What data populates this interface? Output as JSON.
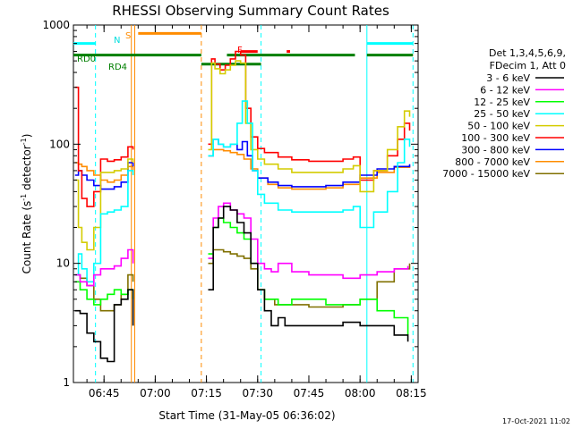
{
  "colors": {
    "black": "#000000",
    "magenta": "#ff00ff",
    "green": "#00ff00",
    "cyan": "#00ffff",
    "yellow": "#d4cc00",
    "red": "#ff0000",
    "blue": "#0000ff",
    "orange": "#ff8c00",
    "olive": "#807000",
    "darkgreen": "#007f00"
  },
  "chart_data": {
    "type": "line",
    "title": "RHESSI Observing Summary Count Rates",
    "xlabel": "Start Time (31-May-05 06:36:02)",
    "ylabel_main": "Count Rate (s",
    "ylabel_sup": "-1",
    "ylabel_mid": " detector",
    "ylabel_sup2": "-1",
    "ylabel_end": ")",
    "timestamp": "17-Oct-2021 11:02",
    "y_scale": "log",
    "ylim": [
      1,
      1000
    ],
    "xlim": [
      "06:36:02",
      "08:17:00"
    ],
    "x_ticks": [
      "06:45",
      "07:00",
      "07:15",
      "07:30",
      "07:45",
      "08:00",
      "08:15"
    ],
    "y_ticks": [
      {
        "value": 1,
        "label": "1"
      },
      {
        "value": 10,
        "label": "10"
      },
      {
        "value": 100,
        "label": "100"
      },
      {
        "value": 1000,
        "label": "1000"
      }
    ],
    "legend": {
      "position": "right",
      "header1": "Det 1,3,4,5,6,9,",
      "header2": "FDecim 1, Att 0",
      "entries": [
        {
          "label": "3 - 6 keV",
          "color": "#000000"
        },
        {
          "label": "6 - 12 keV",
          "color": "#ff00ff"
        },
        {
          "label": "12 - 25 keV",
          "color": "#00ff00"
        },
        {
          "label": "25 - 50 keV",
          "color": "#00ffff"
        },
        {
          "label": "50 - 100 keV",
          "color": "#d4cc00"
        },
        {
          "label": "100 - 300 keV",
          "color": "#ff0000"
        },
        {
          "label": "300 - 800 keV",
          "color": "#0000ff"
        },
        {
          "label": "800 - 7000 keV",
          "color": "#ff8c00"
        },
        {
          "label": "7000 - 15000 keV",
          "color": "#807000"
        }
      ]
    },
    "flag_labels": {
      "N": "N",
      "S": "S",
      "F": "F",
      "RD0": "RD0",
      "RD4": "RD4"
    },
    "flag_bars": [
      {
        "flag": "N",
        "color": "#00ffff",
        "level": 700,
        "ranges": [
          [
            "06:36:02",
            "06:42:30"
          ],
          [
            "08:02:00",
            "08:15:30"
          ]
        ]
      },
      {
        "flag": "S",
        "color": "#ff8c00",
        "level": 850,
        "ranges": [
          [
            "06:55:00",
            "07:13:30"
          ]
        ]
      },
      {
        "flag": "F",
        "color": "#ff0000",
        "level": 600,
        "ranges": [
          [
            "07:25:00",
            "07:30:00"
          ],
          [
            "07:38:30",
            "07:39:30"
          ]
        ]
      },
      {
        "flag": "RD0",
        "color": "#007f00",
        "level": 560,
        "ranges": [
          [
            "06:36:02",
            "07:13:30"
          ],
          [
            "07:21:00",
            "07:58:30"
          ],
          [
            "08:02:00",
            "08:15:30"
          ]
        ]
      },
      {
        "flag": "RD4",
        "color": "#007f00",
        "level": 470,
        "ranges": [
          [
            "07:13:30",
            "07:31:00"
          ]
        ]
      }
    ],
    "vertical_lines": [
      {
        "time": "06:42:30",
        "color": "#00ffff",
        "style": "dashed"
      },
      {
        "time": "06:53:00",
        "color": "#ff8c00",
        "style": "solid"
      },
      {
        "time": "06:54:00",
        "color": "#ff8c00",
        "style": "solid"
      },
      {
        "time": "07:13:30",
        "color": "#ff8c00",
        "style": "dashed"
      },
      {
        "time": "07:31:00",
        "color": "#00ffff",
        "style": "dashed"
      },
      {
        "time": "08:02:00",
        "color": "#00ffff",
        "style": "solid"
      },
      {
        "time": "08:15:30",
        "color": "#00ffff",
        "style": "dashed"
      }
    ],
    "gaps": [
      {
        "from": "06:54:00",
        "to": "07:15:30"
      }
    ],
    "series": [
      {
        "name": "3 - 6 keV",
        "color": "#000000",
        "segments": [
          {
            "x": [
              "06:36:30",
              "06:38:00",
              "06:40:00",
              "06:42:00",
              "06:44:00",
              "06:46:00",
              "06:48:00",
              "06:50:00",
              "06:52:00",
              "06:53:30"
            ],
            "y": [
              4,
              3.8,
              2.6,
              2.2,
              1.6,
              1.5,
              4.5,
              5,
              6,
              3
            ]
          },
          {
            "x": [
              "07:15:30",
              "07:17:00",
              "07:18:30",
              "07:20:00",
              "07:22:00",
              "07:24:00",
              "07:26:00",
              "07:28:00",
              "07:30:00",
              "07:32:00",
              "07:34:00",
              "07:36:00",
              "07:38:00",
              "07:40:00",
              "07:45:00",
              "07:50:00",
              "07:55:00",
              "08:00:00",
              "08:05:00",
              "08:10:00",
              "08:14:00"
            ],
            "y": [
              6,
              20,
              24,
              30,
              28,
              22,
              18,
              10,
              6,
              4,
              3,
              3.5,
              3,
              3,
              3,
              3,
              3.2,
              3,
              3,
              2.5,
              2.2
            ]
          }
        ]
      },
      {
        "name": "6 - 12 keV",
        "color": "#ff00ff",
        "segments": [
          {
            "x": [
              "06:36:30",
              "06:38:00",
              "06:40:00",
              "06:42:00",
              "06:44:00",
              "06:46:00",
              "06:48:00",
              "06:50:00",
              "06:52:00",
              "06:53:30"
            ],
            "y": [
              8,
              7,
              6.5,
              8,
              9,
              9,
              9.5,
              11,
              13,
              10
            ]
          },
          {
            "x": [
              "07:15:30",
              "07:17:00",
              "07:18:30",
              "07:20:00",
              "07:22:00",
              "07:24:00",
              "07:26:00",
              "07:28:00",
              "07:30:00",
              "07:32:00",
              "07:34:00",
              "07:36:00",
              "07:40:00",
              "07:45:00",
              "07:50:00",
              "07:55:00",
              "08:00:00",
              "08:05:00",
              "08:10:00",
              "08:14:00"
            ],
            "y": [
              11,
              24,
              30,
              32,
              28,
              26,
              24,
              16,
              10,
              9,
              8.5,
              10,
              8.5,
              8,
              8,
              7.5,
              8,
              8.5,
              9,
              9.5
            ]
          }
        ]
      },
      {
        "name": "12 - 25 keV",
        "color": "#00ff00",
        "segments": [
          {
            "x": [
              "06:36:30",
              "06:38:00",
              "06:40:00",
              "06:42:00",
              "06:44:00",
              "06:46:00",
              "06:48:00",
              "06:50:00",
              "06:52:00",
              "06:53:30"
            ],
            "y": [
              7,
              6,
              5,
              4.5,
              5,
              5.5,
              6,
              5.5,
              6,
              5
            ]
          },
          {
            "x": [
              "07:15:30",
              "07:17:00",
              "07:18:30",
              "07:20:00",
              "07:22:00",
              "07:24:00",
              "07:26:00",
              "07:28:00",
              "07:30:00",
              "07:32:00",
              "07:36:00",
              "07:40:00",
              "07:45:00",
              "07:50:00",
              "07:55:00",
              "08:00:00",
              "08:05:00",
              "08:10:00",
              "08:14:00"
            ],
            "y": [
              12,
              20,
              24,
              22,
              20,
              18,
              16,
              10,
              6,
              5,
              4.5,
              5,
              5,
              4.5,
              4.5,
              5,
              4,
              3.5,
              2.5
            ]
          }
        ]
      },
      {
        "name": "25 - 50 keV",
        "color": "#00ffff",
        "segments": [
          {
            "x": [
              "06:36:30",
              "06:37:30",
              "06:38:30",
              "06:40:00",
              "06:42:00",
              "06:44:00",
              "06:46:00",
              "06:48:00",
              "06:50:00",
              "06:52:00",
              "06:53:30"
            ],
            "y": [
              8,
              12,
              9,
              7,
              10,
              26,
              27,
              28,
              30,
              60,
              55
            ]
          },
          {
            "x": [
              "07:15:30",
              "07:17:00",
              "07:18:30",
              "07:20:00",
              "07:22:00",
              "07:24:00",
              "07:25:30",
              "07:27:00",
              "07:28:30",
              "07:30:00",
              "07:32:00",
              "07:36:00",
              "07:40:00",
              "07:45:00",
              "07:50:00",
              "07:55:00",
              "07:58:00",
              "08:00:00",
              "08:04:00",
              "08:08:00",
              "08:11:00",
              "08:13:00",
              "08:14:30"
            ],
            "y": [
              80,
              110,
              100,
              95,
              100,
              150,
              230,
              150,
              60,
              38,
              32,
              28,
              27,
              27,
              27,
              28,
              30,
              20,
              27,
              40,
              70,
              110,
              95
            ]
          }
        ]
      },
      {
        "name": "50 - 100 keV",
        "color": "#d4cc00",
        "segments": [
          {
            "x": [
              "06:36:30",
              "06:37:30",
              "06:38:30",
              "06:40:00",
              "06:42:00",
              "06:44:00",
              "06:46:00",
              "06:48:00",
              "06:50:00",
              "06:52:00",
              "06:53:30"
            ],
            "y": [
              50,
              20,
              15,
              13,
              20,
              58,
              58,
              60,
              62,
              75,
              70
            ]
          },
          {
            "x": [
              "07:15:30",
              "07:16:30",
              "07:17:30",
              "07:19:00",
              "07:20:30",
              "07:22:00",
              "07:23:30",
              "07:25:00",
              "07:26:30",
              "07:28:00",
              "07:30:00",
              "07:32:00",
              "07:36:00",
              "07:40:00",
              "07:45:00",
              "07:50:00",
              "07:55:00",
              "07:58:00",
              "08:00:00",
              "08:04:00",
              "08:08:00",
              "08:11:00",
              "08:13:00",
              "08:14:30"
            ],
            "y": [
              90,
              480,
              430,
              390,
              420,
              460,
              500,
              480,
              150,
              90,
              75,
              68,
              62,
              58,
              58,
              58,
              62,
              66,
              40,
              60,
              90,
              140,
              190,
              170
            ]
          }
        ]
      },
      {
        "name": "100 - 300 keV",
        "color": "#ff0000",
        "segments": [
          {
            "x": [
              "06:36:30",
              "06:37:30",
              "06:38:30",
              "06:40:00",
              "06:42:00",
              "06:44:00",
              "06:46:00",
              "06:48:00",
              "06:50:00",
              "06:52:00",
              "06:53:30"
            ],
            "y": [
              300,
              60,
              35,
              30,
              40,
              75,
              72,
              74,
              78,
              95,
              90
            ]
          },
          {
            "x": [
              "07:15:30",
              "07:16:30",
              "07:17:30",
              "07:19:00",
              "07:20:30",
              "07:22:00",
              "07:23:30",
              "07:25:00",
              "07:26:30",
              "07:28:00",
              "07:30:00",
              "07:32:00",
              "07:36:00",
              "07:40:00",
              "07:45:00",
              "07:50:00",
              "07:55:00",
              "07:58:00",
              "08:00:00",
              "08:04:00",
              "08:08:00",
              "08:11:00",
              "08:13:00",
              "08:14:30"
            ],
            "y": [
              100,
              520,
              470,
              420,
              460,
              520,
              600,
              560,
              200,
              115,
              92,
              85,
              78,
              74,
              72,
              72,
              75,
              78,
              50,
              60,
              80,
              110,
              150,
              130
            ]
          }
        ]
      },
      {
        "name": "300 - 800 keV",
        "color": "#0000ff",
        "segments": [
          {
            "x": [
              "06:36:30",
              "06:37:30",
              "06:38:30",
              "06:40:00",
              "06:42:00",
              "06:44:00",
              "06:46:00",
              "06:48:00",
              "06:50:00",
              "06:52:00",
              "06:53:30"
            ],
            "y": [
              55,
              60,
              55,
              50,
              45,
              42,
              42,
              44,
              48,
              70,
              65
            ]
          },
          {
            "x": [
              "07:15:30",
              "07:17:00",
              "07:18:30",
              "07:20:00",
              "07:22:00",
              "07:24:00",
              "07:25:30",
              "07:27:00",
              "07:28:30",
              "07:30:00",
              "07:33:00",
              "07:36:00",
              "07:40:00",
              "07:45:00",
              "07:50:00",
              "07:55:00",
              "08:00:00",
              "08:05:00",
              "08:10:00",
              "08:14:30"
            ],
            "y": [
              80,
              110,
              100,
              95,
              100,
              90,
              105,
              80,
              60,
              52,
              48,
              45,
              44,
              44,
              45,
              48,
              55,
              62,
              65,
              68
            ]
          }
        ]
      },
      {
        "name": "800 - 7000 keV",
        "color": "#ff8c00",
        "segments": [
          {
            "x": [
              "06:36:30",
              "06:37:30",
              "06:38:30",
              "06:40:00",
              "06:42:00",
              "06:44:00",
              "06:46:00",
              "06:48:00",
              "06:50:00",
              "06:52:00",
              "06:53:30"
            ],
            "y": [
              70,
              68,
              65,
              60,
              55,
              50,
              48,
              50,
              55,
              65,
              60
            ]
          },
          {
            "x": [
              "07:15:30",
              "07:17:00",
              "07:18:30",
              "07:20:00",
              "07:22:00",
              "07:24:00",
              "07:26:00",
              "07:28:00",
              "07:30:00",
              "07:33:00",
              "07:36:00",
              "07:40:00",
              "07:45:00",
              "07:50:00",
              "07:55:00",
              "08:00:00",
              "08:05:00",
              "08:10:00",
              "08:14:30"
            ],
            "y": [
              80,
              90,
              90,
              88,
              85,
              82,
              75,
              62,
              52,
              46,
              43,
              42,
              42,
              43,
              46,
              52,
              58,
              64,
              66
            ]
          }
        ]
      },
      {
        "name": "7000 - 15000 keV",
        "color": "#807000",
        "segments": [
          {
            "x": [
              "06:36:30",
              "06:38:00",
              "06:40:00",
              "06:42:00",
              "06:44:00",
              "06:46:00",
              "06:48:00",
              "06:50:00",
              "06:52:00",
              "06:53:30"
            ],
            "y": [
              8,
              7.5,
              6.5,
              5,
              4,
              4,
              4.5,
              5.5,
              8,
              7
            ]
          },
          {
            "x": [
              "07:15:30",
              "07:17:00",
              "07:18:30",
              "07:20:00",
              "07:22:00",
              "07:24:00",
              "07:26:00",
              "07:28:00",
              "07:30:00",
              "07:32:00",
              "07:35:00",
              "07:40:00",
              "07:45:00",
              "07:50:00",
              "07:55:00",
              "08:00:00",
              "08:05:00",
              "08:10:00",
              "08:14:30"
            ],
            "y": [
              10,
              13,
              13,
              12.5,
              12,
              11.5,
              11,
              9,
              6,
              5,
              4.5,
              4.5,
              4.3,
              4.3,
              4.5,
              5,
              7,
              9,
              10
            ]
          }
        ]
      }
    ]
  }
}
